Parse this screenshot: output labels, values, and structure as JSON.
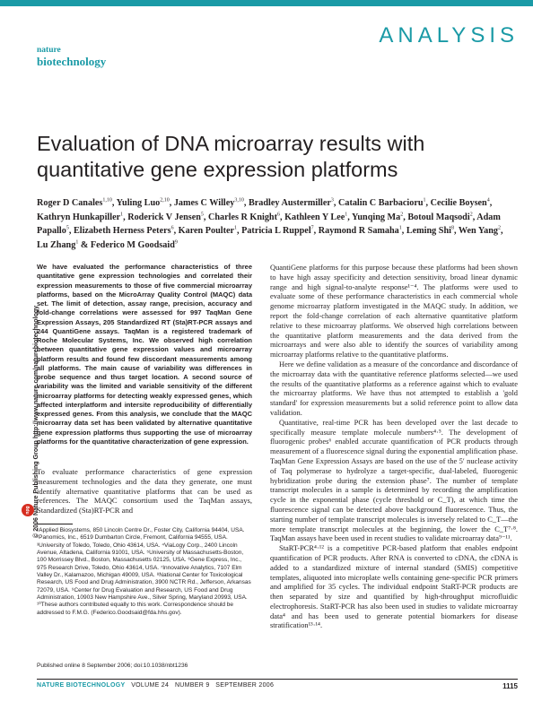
{
  "header": {
    "section_label": "ANALYSIS",
    "journal_logo_line1": "nature",
    "journal_logo_line2": "biotechnology"
  },
  "sidebar": {
    "copyright": "© 2006 Nature Publishing Group  http://www.nature.com/naturebiotechnology",
    "publisher_logo": "npg"
  },
  "article": {
    "title": "Evaluation of DNA microarray results with quantitative gene expression platforms",
    "authors": [
      {
        "name": "Roger D Canales",
        "aff": "1,10",
        "sep": ", "
      },
      {
        "name": "Yuling Luo",
        "aff": "2,10",
        "sep": ", "
      },
      {
        "name": "James C Willey",
        "aff": "3,10",
        "sep": ", "
      },
      {
        "name": "Bradley Austermiller",
        "aff": "3",
        "sep": ", "
      },
      {
        "name": "Catalin C Barbacioru",
        "aff": "1",
        "sep": ", "
      },
      {
        "name": "Cecilie Boysen",
        "aff": "4",
        "sep": ", "
      },
      {
        "name": "Kathryn Hunkapiller",
        "aff": "1",
        "sep": ", "
      },
      {
        "name": "Roderick V Jensen",
        "aff": "5",
        "sep": ", "
      },
      {
        "name": "Charles R Knight",
        "aff": "6",
        "sep": ", "
      },
      {
        "name": "Kathleen Y Lee",
        "aff": "1",
        "sep": ", "
      },
      {
        "name": "Yunqing Ma",
        "aff": "2",
        "sep": ", "
      },
      {
        "name": "Botoul Maqsodi",
        "aff": "2",
        "sep": ", "
      },
      {
        "name": "Adam Papallo",
        "aff": "5",
        "sep": ", "
      },
      {
        "name": "Elizabeth Herness Peters",
        "aff": "6",
        "sep": ", "
      },
      {
        "name": "Karen Poulter",
        "aff": "1",
        "sep": ", "
      },
      {
        "name": "Patricia L Ruppel",
        "aff": "7",
        "sep": ", "
      },
      {
        "name": "Raymond R Samaha",
        "aff": "1",
        "sep": ", "
      },
      {
        "name": "Leming Shi",
        "aff": "8",
        "sep": ", "
      },
      {
        "name": "Wen Yang",
        "aff": "2",
        "sep": ", "
      },
      {
        "name": "Lu Zhang",
        "aff": "1",
        "sep": " & "
      },
      {
        "name": "Federico M Goodsaid",
        "aff": "9",
        "sep": ""
      }
    ],
    "abstract": "We have evaluated the performance characteristics of three quantitative gene expression technologies and correlated their expression measurements to those of five commercial microarray platforms, based on the MicroArray Quality Control (MAQC) data set. The limit of detection, assay range, precision, accuracy and fold-change correlations were assessed for 997 TaqMan Gene Expression Assays, 205 Standardized RT (Sta)RT-PCR assays and 244 QuantiGene assays. TaqMan is a registered trademark of Roche Molecular Systems, Inc. We observed high correlation between quantitative gene expression values and microarray platform results and found few discordant measurements among all platforms. The main cause of variability was differences in probe sequence and thus target location. A second source of variability was the limited and variable sensitivity of the different microarray platforms for detecting weakly expressed genes, which affected interplatform and intersite reproducibility of differentially expressed genes. From this analysis, we conclude that the MAQC microarray data set has been validated by alternative quantitative gene expression platforms thus supporting the use of microarray platforms for the quantitative characterization of gene expression.",
    "intro": "To evaluate performance characteristics of gene expression measurement technologies and the data they generate, one must identify alternative quantitative platforms that can be used as references. The MAQC consortium used the TaqMan assays, Standardized (Sta)RT-PCR and",
    "affiliations": "¹Applied Biosystems, 850 Lincoln Centre Dr., Foster City, California 94404, USA. ²Panomics, Inc., 6519 Dumbarton Circle, Fremont, California 94555, USA. ³University of Toledo, Toledo, Ohio 43614, USA. ⁴ViaLogy Corp., 2400 Lincoln Avenue, Altadena, California 91001, USA. ⁵University of Massachusetts-Boston, 100 Morrissey Blvd., Boston, Massachusetts 02125, USA. ⁶Gene Express, Inc., 975 Research Drive, Toledo, Ohio 43614, USA. ⁷Innovative Analytics, 7107 Elm Valley Dr., Kalamazoo, Michigan 49009, USA. ⁸National Center for Toxicological Research, US Food and Drug Administration, 3900 NCTR Rd., Jefferson, Arkansas 72079, USA. ⁹Center for Drug Evaluation and Research, US Food and Drug Administration, 10903 New Hampshire Ave., Silver Spring, Maryland 20993, USA. ¹⁰These authors contributed equally to this work. Correspondence should be addressed to F.M.G. (Federico.Goodsaid@fda.hhs.gov).",
    "published": "Published online 8 September 2006; doi:10.1038/nbt1236",
    "col2_paragraphs": [
      "QuantiGene platforms for this purpose because these platforms had been shown to have high assay specificity and detection sensitivity, broad linear dynamic range and high signal-to-analyte response¹⁻⁴. The platforms were used to evaluate some of these performance characteristics in each commercial whole genome microarray platform investigated in the MAQC study. In addition, we report the fold-change correlation of each alternative quantitative platform relative to these microarray platforms. We observed high correlations between the quantitative platform measurements and the data derived from the microarrays and were also able to identify the sources of variability among microarray platforms relative to the quantitative platforms.",
      "Here we define validation as a measure of the concordance and discordance of the microarray data with the quantitative reference platforms selected—we used the results of the quantitative platforms as a reference against which to evaluate the microarray platforms. We have thus not attempted to establish a 'gold standard' for expression measurements but a solid reference point to allow data validation.",
      "Quantitative, real-time PCR has been developed over the last decade to specifically measure template molecule numbers⁴·⁵. The development of fluorogenic probes⁶ enabled accurate quantification of PCR products through measurement of a fluorescence signal during the exponential amplification phase. TaqMan Gene Expression Assays are based on the use of the 5′ nuclease activity of Taq polymerase to hydrolyze a target-specific, dual-labeled, fluorogenic hybridization probe during the extension phase⁷. The number of template transcript molecules in a sample is determined by recording the amplification cycle in the exponential phase (cycle threshold or C_T), at which time the fluorescence signal can be detected above background fluorescence. Thus, the starting number of template transcript molecules is inversely related to C_T—the more template transcript molecules at the beginning, the lower the C_T⁷·⁸. TaqMan assays have been used in recent studies to validate microarray data⁹⁻¹¹.",
      "StaRT-PCR⁴·¹² is a competitive PCR-based platform that enables endpoint quantification of PCR products. After RNA is converted to cDNA, the cDNA is added to a standardized mixture of internal standard (SMIS) competitive templates, aliquoted into microplate wells containing gene-specific PCR primers and amplified for 35 cycles. The individual endpoint StaRT-PCR products are then separated by size and quantified by high-throughput microfluidic electrophoresis. StaRT-PCR has also been used in studies to validate microarray data⁴ and has been used to generate potential biomarkers for disease stratification¹³·¹⁴."
    ]
  },
  "footer": {
    "journal": "NATURE BIOTECHNOLOGY",
    "volume": "VOLUME 24",
    "number": "NUMBER 9",
    "date": "SEPTEMBER 2006",
    "page": "1115"
  }
}
